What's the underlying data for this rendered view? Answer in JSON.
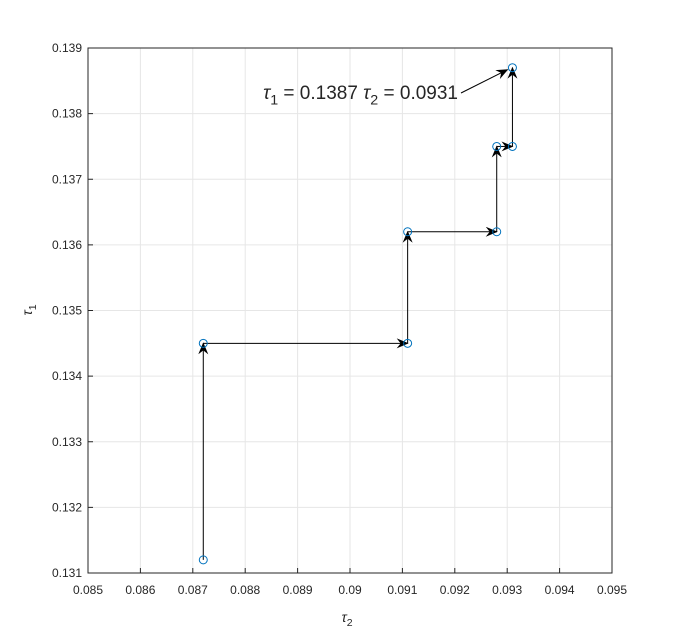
{
  "chart_data": {
    "type": "quiver-path",
    "x": [
      0.0872,
      0.0872,
      0.0911,
      0.0911,
      0.0928,
      0.0928,
      0.0931,
      0.0931
    ],
    "y": [
      0.1312,
      0.1345,
      0.1345,
      0.1362,
      0.1362,
      0.1375,
      0.1375,
      0.1387
    ],
    "color": "#0072bd",
    "arrow_color": "#000000",
    "xlim": [
      0.085,
      0.095
    ],
    "xticks": [
      0.085,
      0.086,
      0.087,
      0.088,
      0.089,
      0.09,
      0.091,
      0.092,
      0.093,
      0.094,
      0.095
    ],
    "ylim": [
      0.131,
      0.139
    ],
    "yticks": [
      0.131,
      0.132,
      0.133,
      0.134,
      0.135,
      0.136,
      0.137,
      0.138,
      0.139
    ],
    "grid": true,
    "xlabel": {
      "text": "τ",
      "sub": "2"
    },
    "ylabel": {
      "text": "τ",
      "sub": "1"
    },
    "annotation": [
      {
        "text": "τ",
        "sub": "1",
        "rest": " = 0.1387 "
      },
      {
        "text": "τ",
        "sub": "2",
        "rest": " = 0.0931"
      }
    ]
  }
}
